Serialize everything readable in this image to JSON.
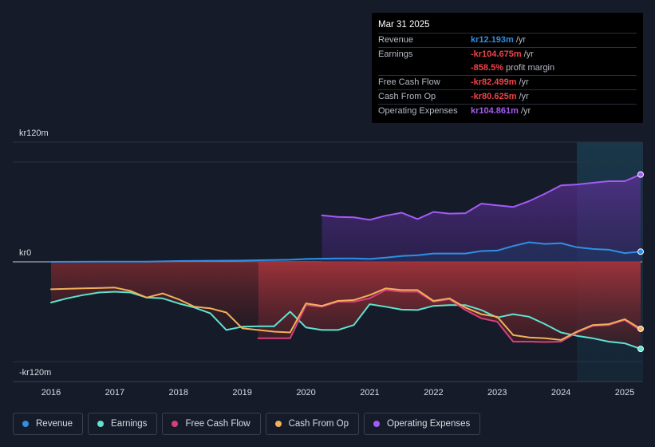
{
  "tooltip": {
    "date": "Mar 31 2025",
    "rows": [
      {
        "label": "Revenue",
        "value": "kr12.193m",
        "unit": "/yr",
        "color": "#2f8fe3"
      },
      {
        "label": "Earnings",
        "value": "-kr104.675m",
        "unit": "/yr",
        "color": "#f0434a"
      },
      {
        "label": "",
        "value": "-858.5%",
        "unit": "profit margin",
        "color": "#f0434a"
      },
      {
        "label": "Free Cash Flow",
        "value": "-kr82.499m",
        "unit": "/yr",
        "color": "#f0434a"
      },
      {
        "label": "Cash From Op",
        "value": "-kr80.625m",
        "unit": "/yr",
        "color": "#f0434a"
      },
      {
        "label": "Operating Expenses",
        "value": "kr104.861m",
        "unit": "/yr",
        "color": "#a35bf5"
      }
    ]
  },
  "legend": [
    {
      "label": "Revenue",
      "color": "#2f8fe3"
    },
    {
      "label": "Earnings",
      "color": "#5fe3cf"
    },
    {
      "label": "Free Cash Flow",
      "color": "#d6407a"
    },
    {
      "label": "Cash From Op",
      "color": "#f0b15a"
    },
    {
      "label": "Operating Expenses",
      "color": "#a35bf5"
    }
  ],
  "chart_data": {
    "type": "area",
    "title": "",
    "xlabel": "",
    "ylabel": "",
    "xlim": [
      2015.8,
      2025.25
    ],
    "ylim": [
      -120,
      120
    ],
    "y_ticks": [
      {
        "value": 120,
        "label": "kr120m"
      },
      {
        "value": 0,
        "label": "kr0"
      },
      {
        "value": -120,
        "label": "-kr120m"
      }
    ],
    "x_ticks": [
      {
        "value": 2016,
        "label": "2016"
      },
      {
        "value": 2017,
        "label": "2017"
      },
      {
        "value": 2018,
        "label": "2018"
      },
      {
        "value": 2019,
        "label": "2019"
      },
      {
        "value": 2020,
        "label": "2020"
      },
      {
        "value": 2021,
        "label": "2021"
      },
      {
        "value": 2022,
        "label": "2022"
      },
      {
        "value": 2023,
        "label": "2023"
      },
      {
        "value": 2024,
        "label": "2024"
      },
      {
        "value": 2025,
        "label": "2025"
      }
    ],
    "highlight_from": 2024.25,
    "series": [
      {
        "name": "Operating Expenses",
        "color": "#a35bf5",
        "points": [
          [
            2020.25,
            56
          ],
          [
            2020.5,
            54
          ],
          [
            2020.75,
            53.5
          ],
          [
            2021.0,
            50.5
          ],
          [
            2021.25,
            55.5
          ],
          [
            2021.5,
            59
          ],
          [
            2021.75,
            51.5
          ],
          [
            2022.0,
            60
          ],
          [
            2022.25,
            58
          ],
          [
            2022.5,
            58.5
          ],
          [
            2022.75,
            70
          ],
          [
            2023.0,
            68
          ],
          [
            2023.25,
            66
          ],
          [
            2023.5,
            73
          ],
          [
            2023.75,
            82
          ],
          [
            2024.0,
            92
          ],
          [
            2024.25,
            93
          ],
          [
            2024.5,
            95
          ],
          [
            2024.75,
            97
          ],
          [
            2025.0,
            97
          ],
          [
            2025.25,
            105
          ]
        ]
      },
      {
        "name": "Revenue",
        "color": "#2f8fe3",
        "points": [
          [
            2016.0,
            0
          ],
          [
            2017.0,
            0.3
          ],
          [
            2017.5,
            0.3
          ],
          [
            2018.0,
            1
          ],
          [
            2019.0,
            1.5
          ],
          [
            2019.75,
            2.5
          ],
          [
            2020.0,
            3.5
          ],
          [
            2020.5,
            4
          ],
          [
            2020.75,
            4
          ],
          [
            2021.0,
            3.5
          ],
          [
            2021.25,
            5
          ],
          [
            2021.5,
            7
          ],
          [
            2021.75,
            8
          ],
          [
            2022.0,
            10
          ],
          [
            2022.25,
            10
          ],
          [
            2022.5,
            10
          ],
          [
            2022.75,
            13
          ],
          [
            2023.0,
            13.5
          ],
          [
            2023.25,
            19
          ],
          [
            2023.5,
            23.5
          ],
          [
            2023.75,
            21.5
          ],
          [
            2024.0,
            22.5
          ],
          [
            2024.25,
            17.5
          ],
          [
            2024.5,
            15.5
          ],
          [
            2024.75,
            14.5
          ],
          [
            2025.0,
            10.5
          ],
          [
            2025.25,
            12.2
          ]
        ]
      },
      {
        "name": "Earnings",
        "color": "#5fe3cf",
        "points": [
          [
            2016.0,
            -49
          ],
          [
            2016.25,
            -44
          ],
          [
            2016.5,
            -40
          ],
          [
            2016.75,
            -37
          ],
          [
            2017.0,
            -36
          ],
          [
            2017.25,
            -37
          ],
          [
            2017.5,
            -43
          ],
          [
            2017.75,
            -44
          ],
          [
            2018.0,
            -50
          ],
          [
            2018.25,
            -55
          ],
          [
            2018.5,
            -62
          ],
          [
            2018.75,
            -82
          ],
          [
            2019.0,
            -78
          ],
          [
            2019.25,
            -77.5
          ],
          [
            2019.5,
            -77.5
          ],
          [
            2019.75,
            -60
          ],
          [
            2020.0,
            -79
          ],
          [
            2020.25,
            -82
          ],
          [
            2020.5,
            -82
          ],
          [
            2020.75,
            -76
          ],
          [
            2021.0,
            -51
          ],
          [
            2021.25,
            -54
          ],
          [
            2021.5,
            -57.5
          ],
          [
            2021.75,
            -58
          ],
          [
            2022.0,
            -53
          ],
          [
            2022.25,
            -52
          ],
          [
            2022.5,
            -52
          ],
          [
            2022.75,
            -58
          ],
          [
            2023.0,
            -67
          ],
          [
            2023.25,
            -63
          ],
          [
            2023.5,
            -66
          ],
          [
            2023.75,
            -75
          ],
          [
            2024.0,
            -85
          ],
          [
            2024.25,
            -89
          ],
          [
            2024.5,
            -92
          ],
          [
            2024.75,
            -96
          ],
          [
            2025.0,
            -98
          ],
          [
            2025.25,
            -104.7
          ]
        ]
      },
      {
        "name": "Free Cash Flow",
        "color": "#d6407a",
        "points": [
          [
            2019.25,
            -92
          ],
          [
            2019.5,
            -92
          ],
          [
            2019.75,
            -92
          ],
          [
            2020.0,
            -52
          ],
          [
            2020.25,
            -54
          ],
          [
            2020.5,
            -48
          ],
          [
            2020.75,
            -48
          ],
          [
            2021.0,
            -44
          ],
          [
            2021.25,
            -34
          ],
          [
            2021.5,
            -36
          ],
          [
            2021.75,
            -36
          ],
          [
            2022.0,
            -48
          ],
          [
            2022.25,
            -45
          ],
          [
            2022.5,
            -58
          ],
          [
            2022.75,
            -68
          ],
          [
            2023.0,
            -72
          ],
          [
            2023.25,
            -96
          ],
          [
            2023.5,
            -96
          ],
          [
            2023.75,
            -96.5
          ],
          [
            2024.0,
            -96
          ],
          [
            2024.25,
            -85
          ],
          [
            2024.5,
            -77
          ],
          [
            2024.75,
            -76
          ],
          [
            2025.0,
            -70
          ],
          [
            2025.25,
            -82.5
          ]
        ]
      },
      {
        "name": "Cash From Op",
        "color": "#f0b15a",
        "points": [
          [
            2016.0,
            -33
          ],
          [
            2016.5,
            -32
          ],
          [
            2017.0,
            -31
          ],
          [
            2017.25,
            -35
          ],
          [
            2017.5,
            -43
          ],
          [
            2017.75,
            -38
          ],
          [
            2018.0,
            -45
          ],
          [
            2018.25,
            -54
          ],
          [
            2018.5,
            -56
          ],
          [
            2018.75,
            -61
          ],
          [
            2019.0,
            -80
          ],
          [
            2019.25,
            -82
          ],
          [
            2019.5,
            -84
          ],
          [
            2019.75,
            -85
          ],
          [
            2020.0,
            -50
          ],
          [
            2020.25,
            -53
          ],
          [
            2020.5,
            -47
          ],
          [
            2020.75,
            -46
          ],
          [
            2021.0,
            -40
          ],
          [
            2021.25,
            -32
          ],
          [
            2021.5,
            -34
          ],
          [
            2021.75,
            -34
          ],
          [
            2022.0,
            -47
          ],
          [
            2022.25,
            -44
          ],
          [
            2022.5,
            -55
          ],
          [
            2022.75,
            -63
          ],
          [
            2023.0,
            -66
          ],
          [
            2023.25,
            -88
          ],
          [
            2023.5,
            -91
          ],
          [
            2023.75,
            -92
          ],
          [
            2024.0,
            -94
          ],
          [
            2024.25,
            -84
          ],
          [
            2024.5,
            -76
          ],
          [
            2024.75,
            -75
          ],
          [
            2025.0,
            -69
          ],
          [
            2025.25,
            -80.6
          ]
        ]
      }
    ]
  }
}
